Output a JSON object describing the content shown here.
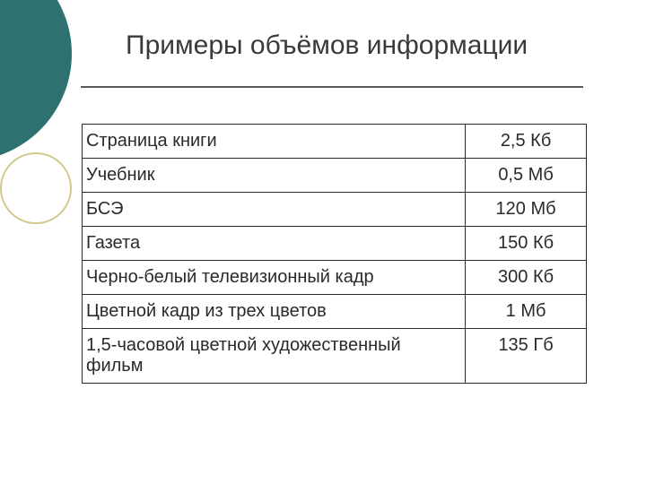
{
  "title": "Примеры объёмов информации",
  "table": {
    "rows": [
      {
        "label": "Страница книги",
        "value": "2,5 Кб"
      },
      {
        "label": "Учебник",
        "value": "0,5 Мб"
      },
      {
        "label": "БСЭ",
        "value": "120 Мб"
      },
      {
        "label": "Газета",
        "value": "150 Кб"
      },
      {
        "label": "Черно-белый телевизионный кадр",
        "value": "300 Кб"
      },
      {
        "label": "Цветной кадр из трех цветов",
        "value": "1 Мб"
      },
      {
        "label": "1,5-часовой цветной художественный фильм",
        "value": "135 Гб"
      }
    ]
  },
  "styling": {
    "background_color": "#ffffff",
    "accent_color": "#2d7270",
    "outline_circle_color": "#d0c88a",
    "text_color": "#2a2a2a",
    "title_color": "#3a3a3a",
    "title_fontsize": 30,
    "cell_fontsize": 20,
    "border_color": "#2a2a2a",
    "hr_color": "#5a5a5a",
    "col_label_width_pct": 76,
    "col_value_width_pct": 24
  }
}
